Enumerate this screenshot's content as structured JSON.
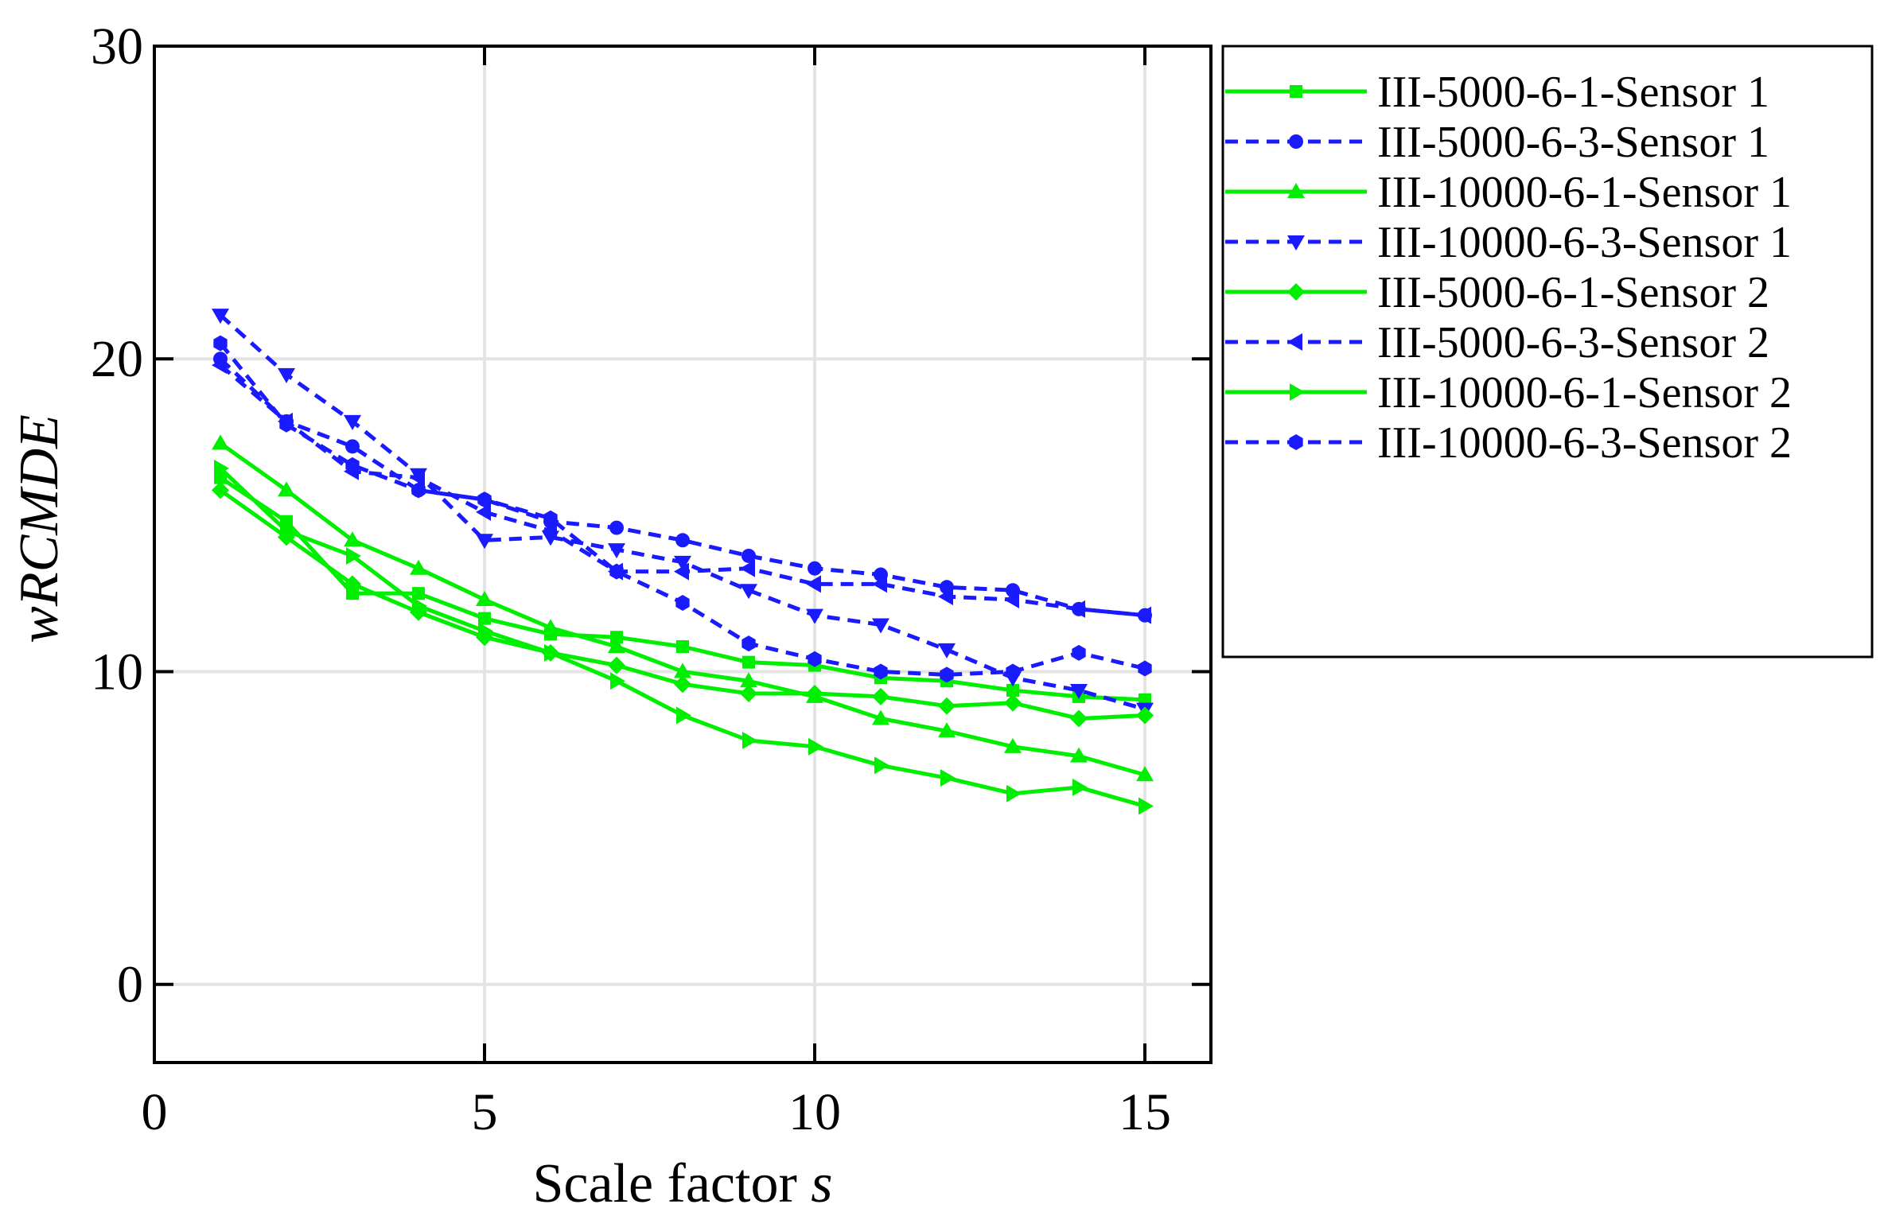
{
  "chart_data": {
    "type": "line",
    "xlabel": "Scale factor",
    "xlabel_italic": "s",
    "ylabel": "wRCMDE",
    "xlim": [
      0,
      16
    ],
    "ylim": [
      -2.5,
      30
    ],
    "xticks": [
      0,
      5,
      10,
      15
    ],
    "yticks": [
      0,
      10,
      20,
      30
    ],
    "x_tick_labels": [
      "0",
      "5",
      "10",
      "15"
    ],
    "y_tick_labels": [
      "0",
      "10",
      "20",
      "30"
    ],
    "grid": true,
    "legend_position": "right, outside plot",
    "x": [
      1,
      2,
      3,
      4,
      5,
      6,
      7,
      8,
      9,
      10,
      11,
      12,
      13,
      14,
      15
    ],
    "series": [
      {
        "name": "III-5000-6-1-Sensor 1",
        "color": "#00ee00",
        "dash": "solid",
        "marker": "square",
        "values": [
          16.2,
          14.8,
          12.5,
          12.5,
          11.7,
          11.2,
          11.1,
          10.8,
          10.3,
          10.2,
          9.8,
          9.7,
          9.4,
          9.2,
          9.1
        ]
      },
      {
        "name": "III-5000-6-3-Sensor 1",
        "color": "#1a1aff",
        "dash": "dashed",
        "marker": "circle",
        "values": [
          20.0,
          18.0,
          17.2,
          15.8,
          15.5,
          14.8,
          14.6,
          14.2,
          13.7,
          13.3,
          13.1,
          12.7,
          12.6,
          12.0,
          11.8
        ]
      },
      {
        "name": "III-10000-6-1-Sensor 1",
        "color": "#00ee00",
        "dash": "solid",
        "marker": "triangle-up",
        "values": [
          17.3,
          15.8,
          14.2,
          13.3,
          12.3,
          11.4,
          10.8,
          10.0,
          9.7,
          9.2,
          8.5,
          8.1,
          7.6,
          7.3,
          6.7
        ]
      },
      {
        "name": "III-10000-6-3-Sensor 1",
        "color": "#1a1aff",
        "dash": "dashed",
        "marker": "triangle-down",
        "values": [
          21.4,
          19.5,
          18.0,
          16.3,
          14.2,
          14.3,
          13.9,
          13.5,
          12.6,
          11.8,
          11.5,
          10.7,
          9.8,
          9.4,
          8.8
        ]
      },
      {
        "name": "III-5000-6-1-Sensor 2",
        "color": "#00ee00",
        "dash": "solid",
        "marker": "diamond",
        "values": [
          15.8,
          14.3,
          12.8,
          11.9,
          11.1,
          10.6,
          10.2,
          9.6,
          9.3,
          9.3,
          9.2,
          8.9,
          9.0,
          8.5,
          8.6
        ]
      },
      {
        "name": "III-5000-6-3-Sensor 2",
        "color": "#1a1aff",
        "dash": "dashed",
        "marker": "triangle-left",
        "values": [
          19.8,
          18.0,
          16.4,
          16.2,
          15.1,
          14.5,
          13.2,
          13.2,
          13.3,
          12.8,
          12.8,
          12.4,
          12.3,
          12.0,
          11.8
        ]
      },
      {
        "name": "III-10000-6-1-Sensor 2",
        "color": "#00ee00",
        "dash": "solid",
        "marker": "triangle-right",
        "values": [
          16.5,
          14.5,
          13.7,
          12.1,
          11.3,
          10.6,
          9.7,
          8.6,
          7.8,
          7.6,
          7.0,
          6.6,
          6.1,
          6.3,
          5.7
        ]
      },
      {
        "name": "III-10000-6-3-Sensor 2",
        "color": "#1a1aff",
        "dash": "dashed",
        "marker": "hexagon",
        "values": [
          20.5,
          17.9,
          16.6,
          15.8,
          15.5,
          14.9,
          13.2,
          12.2,
          10.9,
          10.4,
          10.0,
          9.9,
          10.0,
          10.6,
          10.1
        ]
      }
    ]
  }
}
